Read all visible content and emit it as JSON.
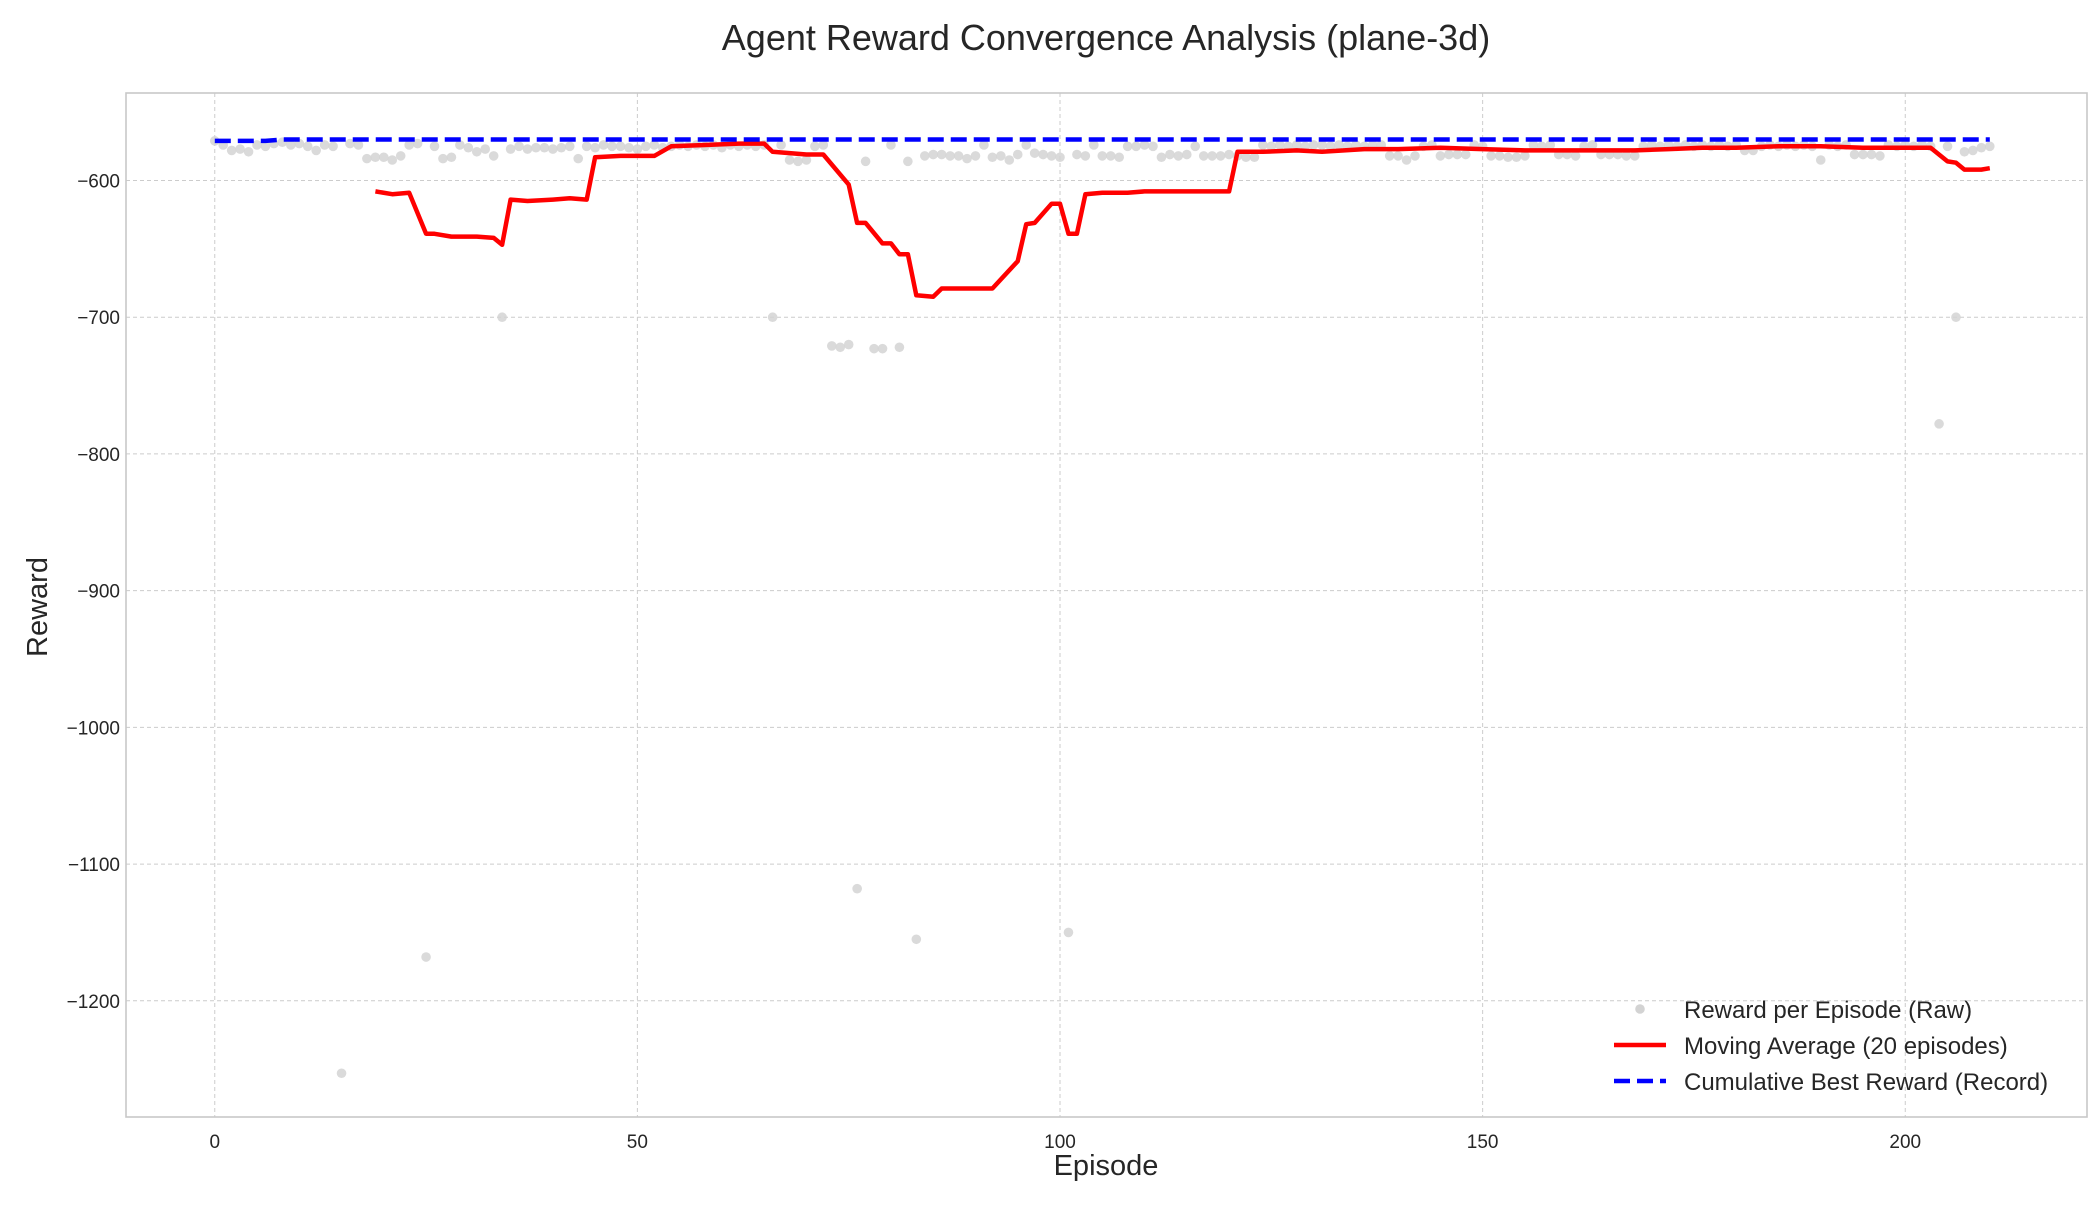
{
  "chart_data": {
    "type": "line",
    "title": "Agent Reward Convergence Analysis (plane-3d)",
    "xlabel": "Episode",
    "ylabel": "Reward",
    "xlim": [
      -10.5,
      221.5
    ],
    "ylim": [
      -1285,
      -536
    ],
    "x_ticks": [
      0,
      50,
      100,
      150,
      200
    ],
    "x_tick_labels": [
      "0",
      "50",
      "100",
      "150",
      "200"
    ],
    "y_ticks": [
      -600,
      -700,
      -800,
      -900,
      -1000,
      -1100,
      -1200
    ],
    "y_tick_labels": [
      "−600",
      "−700",
      "−800",
      "−900",
      "−1000",
      "−1100",
      "−1200"
    ],
    "grid": true,
    "legend_position": "bottom-right",
    "series": [
      {
        "name": "Reward per Episode (Raw)",
        "kind": "scatter",
        "color": "#d3d3d3",
        "points": [
          [
            0,
            -571
          ],
          [
            1,
            -574
          ],
          [
            2,
            -578
          ],
          [
            3,
            -577
          ],
          [
            4,
            -579
          ],
          [
            5,
            -574
          ],
          [
            6,
            -575
          ],
          [
            7,
            -573
          ],
          [
            8,
            -572
          ],
          [
            9,
            -574
          ],
          [
            10,
            -573
          ],
          [
            11,
            -575
          ],
          [
            12,
            -578
          ],
          [
            13,
            -574
          ],
          [
            14,
            -575
          ],
          [
            15,
            -1253
          ],
          [
            16,
            -573
          ],
          [
            17,
            -574
          ],
          [
            18,
            -584
          ],
          [
            19,
            -583
          ],
          [
            20,
            -583
          ],
          [
            21,
            -585
          ],
          [
            22,
            -582
          ],
          [
            23,
            -574
          ],
          [
            24,
            -573
          ],
          [
            25,
            -1168
          ],
          [
            26,
            -575
          ],
          [
            27,
            -584
          ],
          [
            28,
            -583
          ],
          [
            29,
            -574
          ],
          [
            30,
            -576
          ],
          [
            31,
            -579
          ],
          [
            32,
            -577
          ],
          [
            33,
            -582
          ],
          [
            34,
            -700
          ],
          [
            35,
            -577
          ],
          [
            36,
            -575
          ],
          [
            37,
            -577
          ],
          [
            38,
            -576
          ],
          [
            39,
            -576
          ],
          [
            40,
            -577
          ],
          [
            41,
            -576
          ],
          [
            42,
            -575
          ],
          [
            43,
            -584
          ],
          [
            44,
            -575
          ],
          [
            45,
            -576
          ],
          [
            46,
            -574
          ],
          [
            47,
            -575
          ],
          [
            48,
            -575
          ],
          [
            49,
            -576
          ],
          [
            50,
            -577
          ],
          [
            51,
            -575
          ],
          [
            52,
            -574
          ],
          [
            53,
            -576
          ],
          [
            54,
            -575
          ],
          [
            55,
            -574
          ],
          [
            56,
            -575
          ],
          [
            57,
            -574
          ],
          [
            58,
            -575
          ],
          [
            59,
            -574
          ],
          [
            60,
            -576
          ],
          [
            61,
            -574
          ],
          [
            62,
            -575
          ],
          [
            63,
            -574
          ],
          [
            64,
            -575
          ],
          [
            65,
            -574
          ],
          [
            66,
            -700
          ],
          [
            67,
            -574
          ],
          [
            68,
            -585
          ],
          [
            69,
            -586
          ],
          [
            70,
            -585
          ],
          [
            71,
            -575
          ],
          [
            72,
            -574
          ],
          [
            73,
            -721
          ],
          [
            74,
            -722
          ],
          [
            75,
            -720
          ],
          [
            76,
            -1118
          ],
          [
            77,
            -586
          ],
          [
            78,
            -723
          ],
          [
            79,
            -723
          ],
          [
            80,
            -574
          ],
          [
            81,
            -722
          ],
          [
            82,
            -586
          ],
          [
            83,
            -1155
          ],
          [
            84,
            -582
          ],
          [
            85,
            -581
          ],
          [
            86,
            -581
          ],
          [
            87,
            -582
          ],
          [
            88,
            -582
          ],
          [
            89,
            -584
          ],
          [
            90,
            -582
          ],
          [
            91,
            -574
          ],
          [
            92,
            -583
          ],
          [
            93,
            -582
          ],
          [
            94,
            -585
          ],
          [
            95,
            -581
          ],
          [
            96,
            -574
          ],
          [
            97,
            -580
          ],
          [
            98,
            -581
          ],
          [
            99,
            -582
          ],
          [
            100,
            -583
          ],
          [
            101,
            -1150
          ],
          [
            102,
            -581
          ],
          [
            103,
            -582
          ],
          [
            104,
            -574
          ],
          [
            105,
            -582
          ],
          [
            106,
            -582
          ],
          [
            107,
            -583
          ],
          [
            108,
            -575
          ],
          [
            109,
            -575
          ],
          [
            110,
            -574
          ],
          [
            111,
            -575
          ],
          [
            112,
            -583
          ],
          [
            113,
            -581
          ],
          [
            114,
            -582
          ],
          [
            115,
            -581
          ],
          [
            116,
            -575
          ],
          [
            117,
            -582
          ],
          [
            118,
            -582
          ],
          [
            119,
            -582
          ],
          [
            120,
            -581
          ],
          [
            121,
            -582
          ],
          [
            122,
            -583
          ],
          [
            123,
            -583
          ],
          [
            124,
            -574
          ],
          [
            125,
            -575
          ],
          [
            126,
            -574
          ],
          [
            127,
            -575
          ],
          [
            128,
            -574
          ],
          [
            129,
            -575
          ],
          [
            130,
            -574
          ],
          [
            131,
            -574
          ],
          [
            132,
            -575
          ],
          [
            133,
            -574
          ],
          [
            134,
            -575
          ],
          [
            135,
            -574
          ],
          [
            136,
            -575
          ],
          [
            137,
            -574
          ],
          [
            138,
            -574
          ],
          [
            139,
            -582
          ],
          [
            140,
            -582
          ],
          [
            141,
            -585
          ],
          [
            142,
            -582
          ],
          [
            143,
            -575
          ],
          [
            144,
            -574
          ],
          [
            145,
            -582
          ],
          [
            146,
            -581
          ],
          [
            147,
            -581
          ],
          [
            148,
            -581
          ],
          [
            149,
            -574
          ],
          [
            150,
            -575
          ],
          [
            151,
            -582
          ],
          [
            152,
            -582
          ],
          [
            153,
            -583
          ],
          [
            154,
            -583
          ],
          [
            155,
            -582
          ],
          [
            156,
            -574
          ],
          [
            157,
            -575
          ],
          [
            158,
            -574
          ],
          [
            159,
            -581
          ],
          [
            160,
            -581
          ],
          [
            161,
            -582
          ],
          [
            162,
            -575
          ],
          [
            163,
            -574
          ],
          [
            164,
            -581
          ],
          [
            165,
            -581
          ],
          [
            166,
            -581
          ],
          [
            167,
            -582
          ],
          [
            168,
            -582
          ],
          [
            169,
            -575
          ],
          [
            170,
            -574
          ],
          [
            171,
            -575
          ],
          [
            172,
            -574
          ],
          [
            173,
            -575
          ],
          [
            174,
            -574
          ],
          [
            175,
            -575
          ],
          [
            176,
            -574
          ],
          [
            177,
            -575
          ],
          [
            178,
            -574
          ],
          [
            179,
            -575
          ],
          [
            180,
            -574
          ],
          [
            181,
            -578
          ],
          [
            182,
            -578
          ],
          [
            183,
            -575
          ],
          [
            184,
            -574
          ],
          [
            185,
            -575
          ],
          [
            186,
            -574
          ],
          [
            187,
            -575
          ],
          [
            188,
            -574
          ],
          [
            189,
            -575
          ],
          [
            190,
            -585
          ],
          [
            191,
            -574
          ],
          [
            192,
            -575
          ],
          [
            193,
            -574
          ],
          [
            194,
            -581
          ],
          [
            195,
            -581
          ],
          [
            196,
            -581
          ],
          [
            197,
            -582
          ],
          [
            198,
            -574
          ],
          [
            199,
            -575
          ],
          [
            200,
            -574
          ],
          [
            201,
            -575
          ],
          [
            202,
            -574
          ],
          [
            203,
            -575
          ],
          [
            204,
            -778
          ],
          [
            205,
            -575
          ],
          [
            206,
            -700
          ],
          [
            207,
            -579
          ],
          [
            208,
            -578
          ],
          [
            209,
            -576
          ],
          [
            210,
            -575
          ]
        ]
      },
      {
        "name": "Moving Average (20 episodes)",
        "kind": "line",
        "color": "#ff0000",
        "points": [
          [
            19,
            -608
          ],
          [
            21,
            -610
          ],
          [
            23,
            -609
          ],
          [
            25,
            -639
          ],
          [
            26,
            -639
          ],
          [
            28,
            -641
          ],
          [
            31,
            -641
          ],
          [
            33,
            -642
          ],
          [
            34,
            -647
          ],
          [
            35,
            -614
          ],
          [
            37,
            -615
          ],
          [
            40,
            -614
          ],
          [
            42,
            -613
          ],
          [
            44,
            -614
          ],
          [
            45,
            -583
          ],
          [
            48,
            -582
          ],
          [
            52,
            -582
          ],
          [
            54,
            -575
          ],
          [
            58,
            -574
          ],
          [
            62,
            -573
          ],
          [
            65,
            -573
          ],
          [
            66,
            -579
          ],
          [
            70,
            -581
          ],
          [
            72,
            -581
          ],
          [
            75,
            -603
          ],
          [
            76,
            -631
          ],
          [
            77,
            -631
          ],
          [
            79,
            -646
          ],
          [
            80,
            -646
          ],
          [
            81,
            -654
          ],
          [
            82,
            -654
          ],
          [
            83,
            -684
          ],
          [
            85,
            -685
          ],
          [
            86,
            -679
          ],
          [
            92,
            -679
          ],
          [
            95,
            -659
          ],
          [
            96,
            -632
          ],
          [
            97,
            -631
          ],
          [
            99,
            -617
          ],
          [
            100,
            -617
          ],
          [
            101,
            -639
          ],
          [
            102,
            -639
          ],
          [
            103,
            -610
          ],
          [
            105,
            -609
          ],
          [
            108,
            -609
          ],
          [
            110,
            -608
          ],
          [
            116,
            -608
          ],
          [
            120,
            -608
          ],
          [
            121,
            -579
          ],
          [
            124,
            -579
          ],
          [
            128,
            -578
          ],
          [
            131,
            -579
          ],
          [
            136,
            -577
          ],
          [
            140,
            -577
          ],
          [
            145,
            -576
          ],
          [
            150,
            -577
          ],
          [
            155,
            -578
          ],
          [
            160,
            -578
          ],
          [
            168,
            -578
          ],
          [
            172,
            -577
          ],
          [
            176,
            -576
          ],
          [
            180,
            -576
          ],
          [
            185,
            -575
          ],
          [
            190,
            -575
          ],
          [
            195,
            -576
          ],
          [
            203,
            -576
          ],
          [
            205,
            -586
          ],
          [
            206,
            -587
          ],
          [
            207,
            -592
          ],
          [
            209,
            -592
          ],
          [
            210,
            -591
          ]
        ]
      },
      {
        "name": "Cumulative Best Reward (Record)",
        "kind": "line",
        "style": "dashed",
        "color": "#0000ff",
        "points": [
          [
            0,
            -571
          ],
          [
            6,
            -571
          ],
          [
            8,
            -570
          ],
          [
            15,
            -570
          ],
          [
            30,
            -570
          ],
          [
            60,
            -570
          ],
          [
            100,
            -570
          ],
          [
            150,
            -570
          ],
          [
            200,
            -570
          ],
          [
            210,
            -570
          ]
        ]
      }
    ]
  }
}
